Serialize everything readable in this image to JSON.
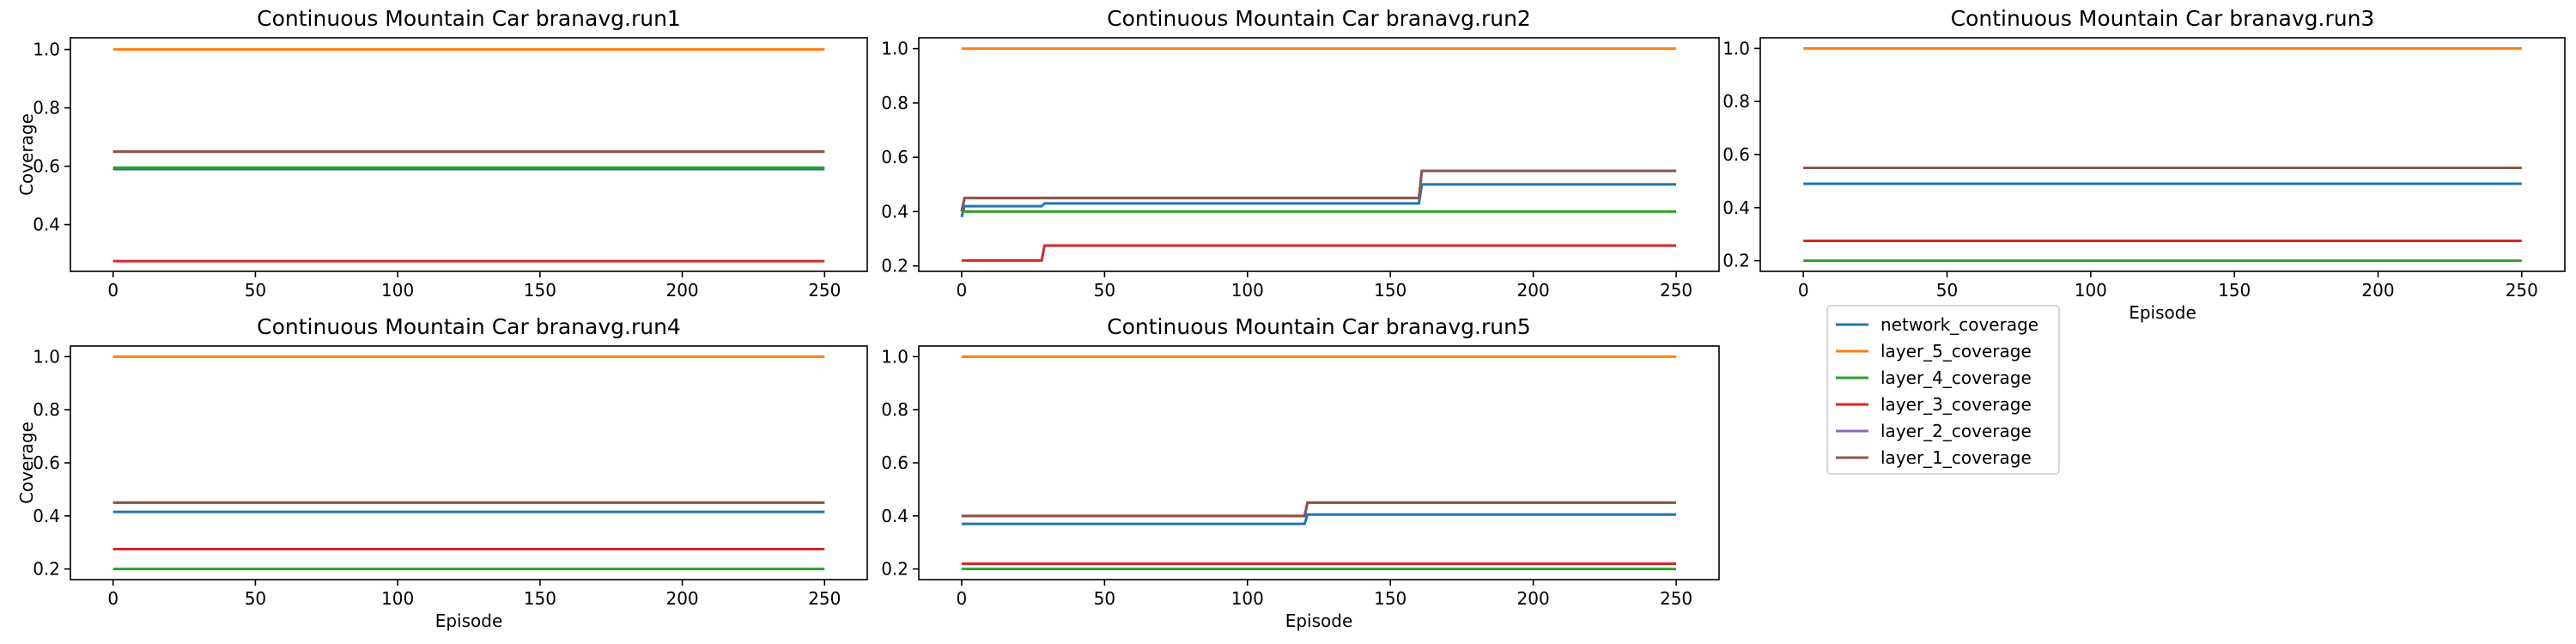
{
  "colors": {
    "network_coverage": "#1f77b4",
    "layer_5_coverage": "#ff7f0e",
    "layer_4_coverage": "#2ca02c",
    "layer_3_coverage": "#d62728",
    "layer_2_coverage": "#9467bd",
    "layer_1_coverage": "#8c564b"
  },
  "legend": {
    "placement": "below run3 panel",
    "entries": [
      "network_coverage",
      "layer_5_coverage",
      "layer_4_coverage",
      "layer_3_coverage",
      "layer_2_coverage",
      "layer_1_coverage"
    ]
  },
  "chart_data": [
    {
      "type": "line",
      "title": "Continuous Mountain Car branavg.run1",
      "xlabel": "",
      "ylabel": "Coverage",
      "xlim": [
        -15,
        265
      ],
      "ylim": [
        0.24,
        1.04
      ],
      "xticks": [
        "0",
        "50",
        "100",
        "150",
        "200",
        "250"
      ],
      "yticks": [
        "0.4",
        "0.6",
        "0.8",
        "1.0"
      ],
      "grid": false,
      "series": [
        {
          "name": "network_coverage",
          "points": [
            [
              0,
              0.59
            ],
            [
              250,
              0.59
            ]
          ]
        },
        {
          "name": "layer_5_coverage",
          "points": [
            [
              0,
              1.0
            ],
            [
              250,
              1.0
            ]
          ]
        },
        {
          "name": "layer_4_coverage",
          "points": [
            [
              0,
              0.595
            ],
            [
              250,
              0.595
            ]
          ]
        },
        {
          "name": "layer_3_coverage",
          "points": [
            [
              0,
              0.275
            ],
            [
              250,
              0.275
            ]
          ]
        },
        {
          "name": "layer_2_coverage",
          "points": [
            [
              0,
              0.65
            ],
            [
              250,
              0.65
            ]
          ]
        },
        {
          "name": "layer_1_coverage",
          "points": [
            [
              0,
              0.65
            ],
            [
              250,
              0.65
            ]
          ]
        }
      ]
    },
    {
      "type": "line",
      "title": "Continuous Mountain Car branavg.run2",
      "xlabel": "",
      "ylabel": "",
      "xlim": [
        -15,
        265
      ],
      "ylim": [
        0.18,
        1.04
      ],
      "xticks": [
        "0",
        "50",
        "100",
        "150",
        "200",
        "250"
      ],
      "yticks": [
        "0.2",
        "0.4",
        "0.6",
        "0.8",
        "1.0"
      ],
      "grid": false,
      "series": [
        {
          "name": "network_coverage",
          "points": [
            [
              0,
              0.38
            ],
            [
              1,
              0.42
            ],
            [
              28,
              0.42
            ],
            [
              29,
              0.43
            ],
            [
              160,
              0.43
            ],
            [
              161,
              0.5
            ],
            [
              250,
              0.5
            ]
          ]
        },
        {
          "name": "layer_5_coverage",
          "points": [
            [
              0,
              1.0
            ],
            [
              250,
              1.0
            ]
          ]
        },
        {
          "name": "layer_4_coverage",
          "points": [
            [
              0,
              0.4
            ],
            [
              250,
              0.4
            ]
          ]
        },
        {
          "name": "layer_3_coverage",
          "points": [
            [
              0,
              0.22
            ],
            [
              28,
              0.22
            ],
            [
              29,
              0.275
            ],
            [
              250,
              0.275
            ]
          ]
        },
        {
          "name": "layer_2_coverage",
          "points": [
            [
              0,
              0.4
            ],
            [
              1,
              0.45
            ],
            [
              160,
              0.45
            ],
            [
              161,
              0.55
            ],
            [
              250,
              0.55
            ]
          ]
        },
        {
          "name": "layer_1_coverage",
          "points": [
            [
              0,
              0.4
            ],
            [
              1,
              0.45
            ],
            [
              160,
              0.45
            ],
            [
              161,
              0.55
            ],
            [
              250,
              0.55
            ]
          ]
        }
      ]
    },
    {
      "type": "line",
      "title": "Continuous Mountain Car branavg.run3",
      "xlabel": "Episode",
      "ylabel": "",
      "xlim": [
        -15,
        265
      ],
      "ylim": [
        0.16,
        1.04
      ],
      "xticks": [
        "0",
        "50",
        "100",
        "150",
        "200",
        "250"
      ],
      "yticks": [
        "0.2",
        "0.4",
        "0.6",
        "0.8",
        "1.0"
      ],
      "grid": false,
      "series": [
        {
          "name": "network_coverage",
          "points": [
            [
              0,
              0.49
            ],
            [
              250,
              0.49
            ]
          ]
        },
        {
          "name": "layer_5_coverage",
          "points": [
            [
              0,
              1.0
            ],
            [
              250,
              1.0
            ]
          ]
        },
        {
          "name": "layer_4_coverage",
          "points": [
            [
              0,
              0.2
            ],
            [
              250,
              0.2
            ]
          ]
        },
        {
          "name": "layer_3_coverage",
          "points": [
            [
              0,
              0.275
            ],
            [
              250,
              0.275
            ]
          ]
        },
        {
          "name": "layer_2_coverage",
          "points": [
            [
              0,
              0.55
            ],
            [
              250,
              0.55
            ]
          ]
        },
        {
          "name": "layer_1_coverage",
          "points": [
            [
              0,
              0.55
            ],
            [
              250,
              0.55
            ]
          ]
        }
      ]
    },
    {
      "type": "line",
      "title": "Continuous Mountain Car branavg.run4",
      "xlabel": "Episode",
      "ylabel": "Coverage",
      "xlim": [
        -15,
        265
      ],
      "ylim": [
        0.16,
        1.04
      ],
      "xticks": [
        "0",
        "50",
        "100",
        "150",
        "200",
        "250"
      ],
      "yticks": [
        "0.2",
        "0.4",
        "0.6",
        "0.8",
        "1.0"
      ],
      "grid": false,
      "series": [
        {
          "name": "network_coverage",
          "points": [
            [
              0,
              0.415
            ],
            [
              250,
              0.415
            ]
          ]
        },
        {
          "name": "layer_5_coverage",
          "points": [
            [
              0,
              1.0
            ],
            [
              250,
              1.0
            ]
          ]
        },
        {
          "name": "layer_4_coverage",
          "points": [
            [
              0,
              0.2
            ],
            [
              250,
              0.2
            ]
          ]
        },
        {
          "name": "layer_3_coverage",
          "points": [
            [
              0,
              0.275
            ],
            [
              250,
              0.275
            ]
          ]
        },
        {
          "name": "layer_2_coverage",
          "points": [
            [
              0,
              0.45
            ],
            [
              250,
              0.45
            ]
          ]
        },
        {
          "name": "layer_1_coverage",
          "points": [
            [
              0,
              0.45
            ],
            [
              250,
              0.45
            ]
          ]
        }
      ]
    },
    {
      "type": "line",
      "title": "Continuous Mountain Car branavg.run5",
      "xlabel": "Episode",
      "ylabel": "",
      "xlim": [
        -15,
        265
      ],
      "ylim": [
        0.16,
        1.04
      ],
      "xticks": [
        "0",
        "50",
        "100",
        "150",
        "200",
        "250"
      ],
      "yticks": [
        "0.2",
        "0.4",
        "0.6",
        "0.8",
        "1.0"
      ],
      "grid": false,
      "series": [
        {
          "name": "network_coverage",
          "points": [
            [
              0,
              0.37
            ],
            [
              120,
              0.37
            ],
            [
              121,
              0.405
            ],
            [
              250,
              0.405
            ]
          ]
        },
        {
          "name": "layer_5_coverage",
          "points": [
            [
              0,
              1.0
            ],
            [
              250,
              1.0
            ]
          ]
        },
        {
          "name": "layer_4_coverage",
          "points": [
            [
              0,
              0.2
            ],
            [
              250,
              0.2
            ]
          ]
        },
        {
          "name": "layer_3_coverage",
          "points": [
            [
              0,
              0.22
            ],
            [
              250,
              0.22
            ]
          ]
        },
        {
          "name": "layer_2_coverage",
          "points": [
            [
              0,
              0.4
            ],
            [
              120,
              0.4
            ],
            [
              121,
              0.45
            ],
            [
              250,
              0.45
            ]
          ]
        },
        {
          "name": "layer_1_coverage",
          "points": [
            [
              0,
              0.4
            ],
            [
              120,
              0.4
            ],
            [
              121,
              0.45
            ],
            [
              250,
              0.45
            ]
          ]
        }
      ]
    }
  ]
}
